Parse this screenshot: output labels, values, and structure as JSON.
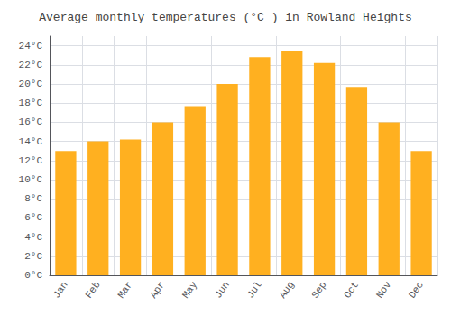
{
  "chart_data": {
    "type": "bar",
    "title": "Average monthly temperatures (°C ) in Rowland Heights",
    "categories": [
      "Jan",
      "Feb",
      "Mar",
      "Apr",
      "May",
      "Jun",
      "Jul",
      "Aug",
      "Sep",
      "Oct",
      "Nov",
      "Dec"
    ],
    "values": [
      13.0,
      14.0,
      14.2,
      16.0,
      17.7,
      20.0,
      22.8,
      23.5,
      22.2,
      19.7,
      16.0,
      13.0
    ],
    "color": "#FFB020",
    "ylim": [
      0,
      25
    ],
    "yticks": [
      {
        "value": 0,
        "label": "0°C"
      },
      {
        "value": 2,
        "label": "2°C"
      },
      {
        "value": 4,
        "label": "4°C"
      },
      {
        "value": 6,
        "label": "6°C"
      },
      {
        "value": 8,
        "label": "8°C"
      },
      {
        "value": 10,
        "label": "10°C"
      },
      {
        "value": 12,
        "label": "12°C"
      },
      {
        "value": 14,
        "label": "14°C"
      },
      {
        "value": 16,
        "label": "16°C"
      },
      {
        "value": 18,
        "label": "18°C"
      },
      {
        "value": 20,
        "label": "20°C"
      },
      {
        "value": 22,
        "label": "22°C"
      },
      {
        "value": 24,
        "label": "24°C"
      }
    ],
    "grid": true
  }
}
